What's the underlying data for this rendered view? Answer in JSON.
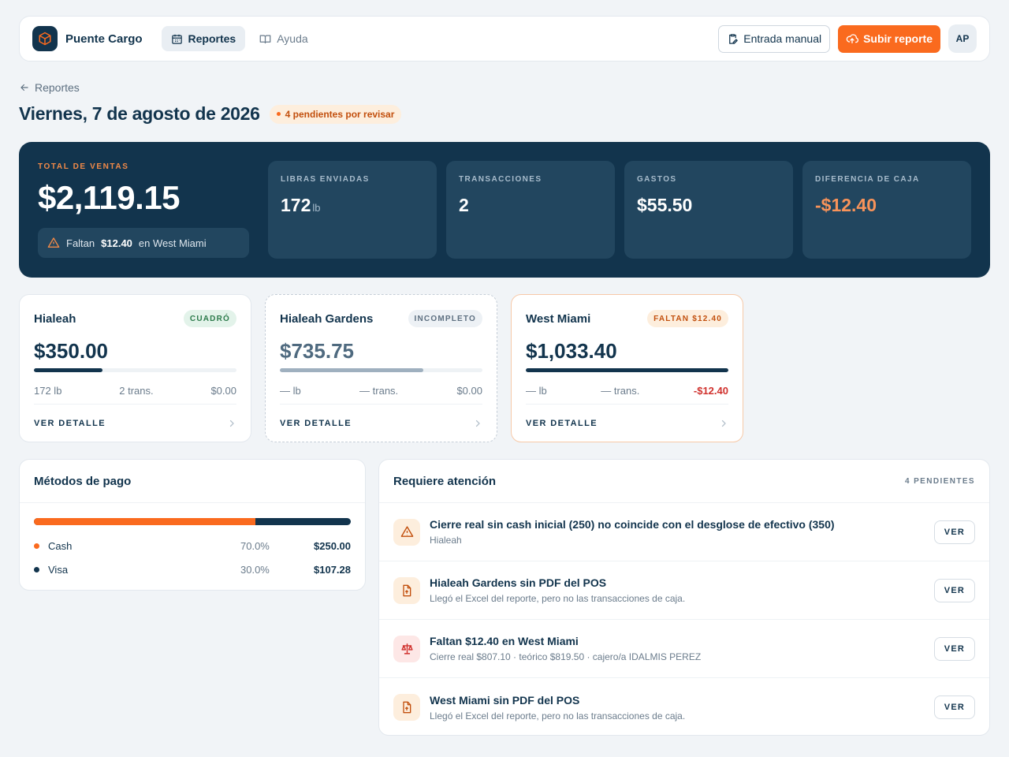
{
  "header": {
    "brand": "Puente Cargo",
    "nav": [
      {
        "label": "Reportes",
        "icon": "calendar-icon",
        "active": true
      },
      {
        "label": "Ayuda",
        "icon": "book-icon",
        "active": false
      }
    ],
    "manual_entry_label": "Entrada manual",
    "upload_label": "Subir reporte",
    "avatar_initials": "AP"
  },
  "breadcrumb": {
    "back_label": "Reportes"
  },
  "page": {
    "title": "Viernes, 7 de agosto de 2026",
    "pending_badge": "4 pendientes por revisar"
  },
  "summary": {
    "total_label": "TOTAL DE VENTAS",
    "total_value": "$2,119.15",
    "alert": {
      "prefix": "Faltan",
      "amount": "$12.40",
      "suffix": "en West Miami"
    },
    "stats": [
      {
        "label": "LIBRAS ENVIADAS",
        "value": "172",
        "unit": "lb"
      },
      {
        "label": "TRANSACCIONES",
        "value": "2",
        "unit": ""
      },
      {
        "label": "GASTOS",
        "value": "$55.50",
        "unit": ""
      },
      {
        "label": "DIFERENCIA DE CAJA",
        "value": "-$12.40",
        "unit": ""
      }
    ]
  },
  "branches": [
    {
      "name": "Hialeah",
      "status": "CUADRÓ",
      "amount": "$350.00",
      "share": 0.34,
      "lb": "172 lb",
      "trans": "2 trans.",
      "diff": "$0.00",
      "detail_label": "VER DETALLE"
    },
    {
      "name": "Hialeah Gardens",
      "status": "INCOMPLETO",
      "amount": "$735.75",
      "share": 0.71,
      "lb": "— lb",
      "trans": "— trans.",
      "diff": "$0.00",
      "detail_label": "VER DETALLE"
    },
    {
      "name": "West Miami",
      "status": "FALTAN $12.40",
      "amount": "$1,033.40",
      "share": 1.0,
      "lb": "— lb",
      "trans": "— trans.",
      "diff": "-$12.40",
      "detail_label": "VER DETALLE"
    }
  ],
  "payments": {
    "title": "Métodos de pago",
    "methods": [
      {
        "name": "Cash",
        "pct": "70.0%",
        "share": 0.7,
        "amount": "$250.00",
        "color": "#fa6a1e"
      },
      {
        "name": "Visa",
        "pct": "30.0%",
        "share": 0.3,
        "amount": "$107.28",
        "color": "#12344d"
      }
    ]
  },
  "attention": {
    "title": "Requiere atención",
    "count": "4 PENDIENTES",
    "items": [
      {
        "title": "Cierre real sin cash inicial (250) no coincide con el desglose de efectivo (350)",
        "sub": "Hialeah",
        "icon": "warning-icon",
        "action": "VER"
      },
      {
        "title": "Hialeah Gardens sin PDF del POS",
        "sub": "Llegó el Excel del reporte, pero no las transacciones de caja.",
        "icon": "file-upload-icon",
        "action": "VER"
      },
      {
        "title": "Faltan $12.40 en West Miami",
        "sub": "Cierre real $807.10 · teórico $819.50 · cajero/a IDALMIS PEREZ",
        "icon": "scale-icon",
        "action": "VER"
      },
      {
        "title": "West Miami sin PDF del POS",
        "sub": "Llegó el Excel del reporte, pero no las transacciones de caja.",
        "icon": "file-upload-icon",
        "action": "VER"
      }
    ]
  },
  "colors": {
    "navy": "#12344d",
    "accent": "#fa6a1e",
    "danger": "#d0312d",
    "ok": "#2c7a4b"
  }
}
